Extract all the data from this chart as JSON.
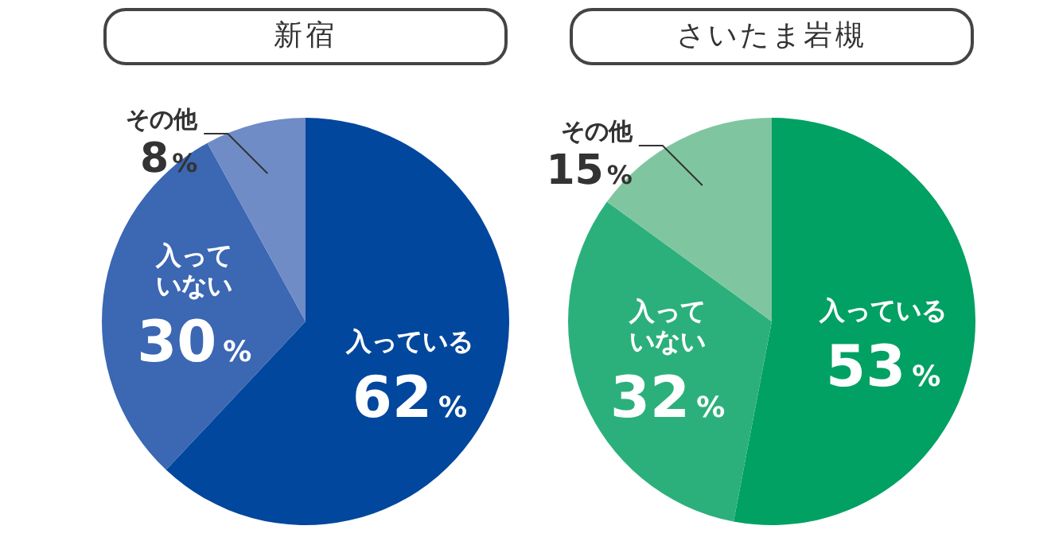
{
  "chart_data": [
    {
      "type": "pie",
      "title": "新宿",
      "categories": [
        "入っている",
        "入っていない",
        "その他"
      ],
      "values": [
        62,
        30,
        8
      ],
      "value_labels": [
        "62%",
        "30%",
        "8%"
      ],
      "colors": [
        "#00479d",
        "#3b67b3",
        "#6f8cc7"
      ],
      "legend": false
    },
    {
      "type": "pie",
      "title": "さいたま岩槻",
      "categories": [
        "入っている",
        "入っていない",
        "その他"
      ],
      "values": [
        53,
        32,
        15
      ],
      "value_labels": [
        "53%",
        "32%",
        "15%"
      ],
      "colors": [
        "#00a163",
        "#2cb07b",
        "#7fc6a0"
      ],
      "legend": false
    }
  ]
}
